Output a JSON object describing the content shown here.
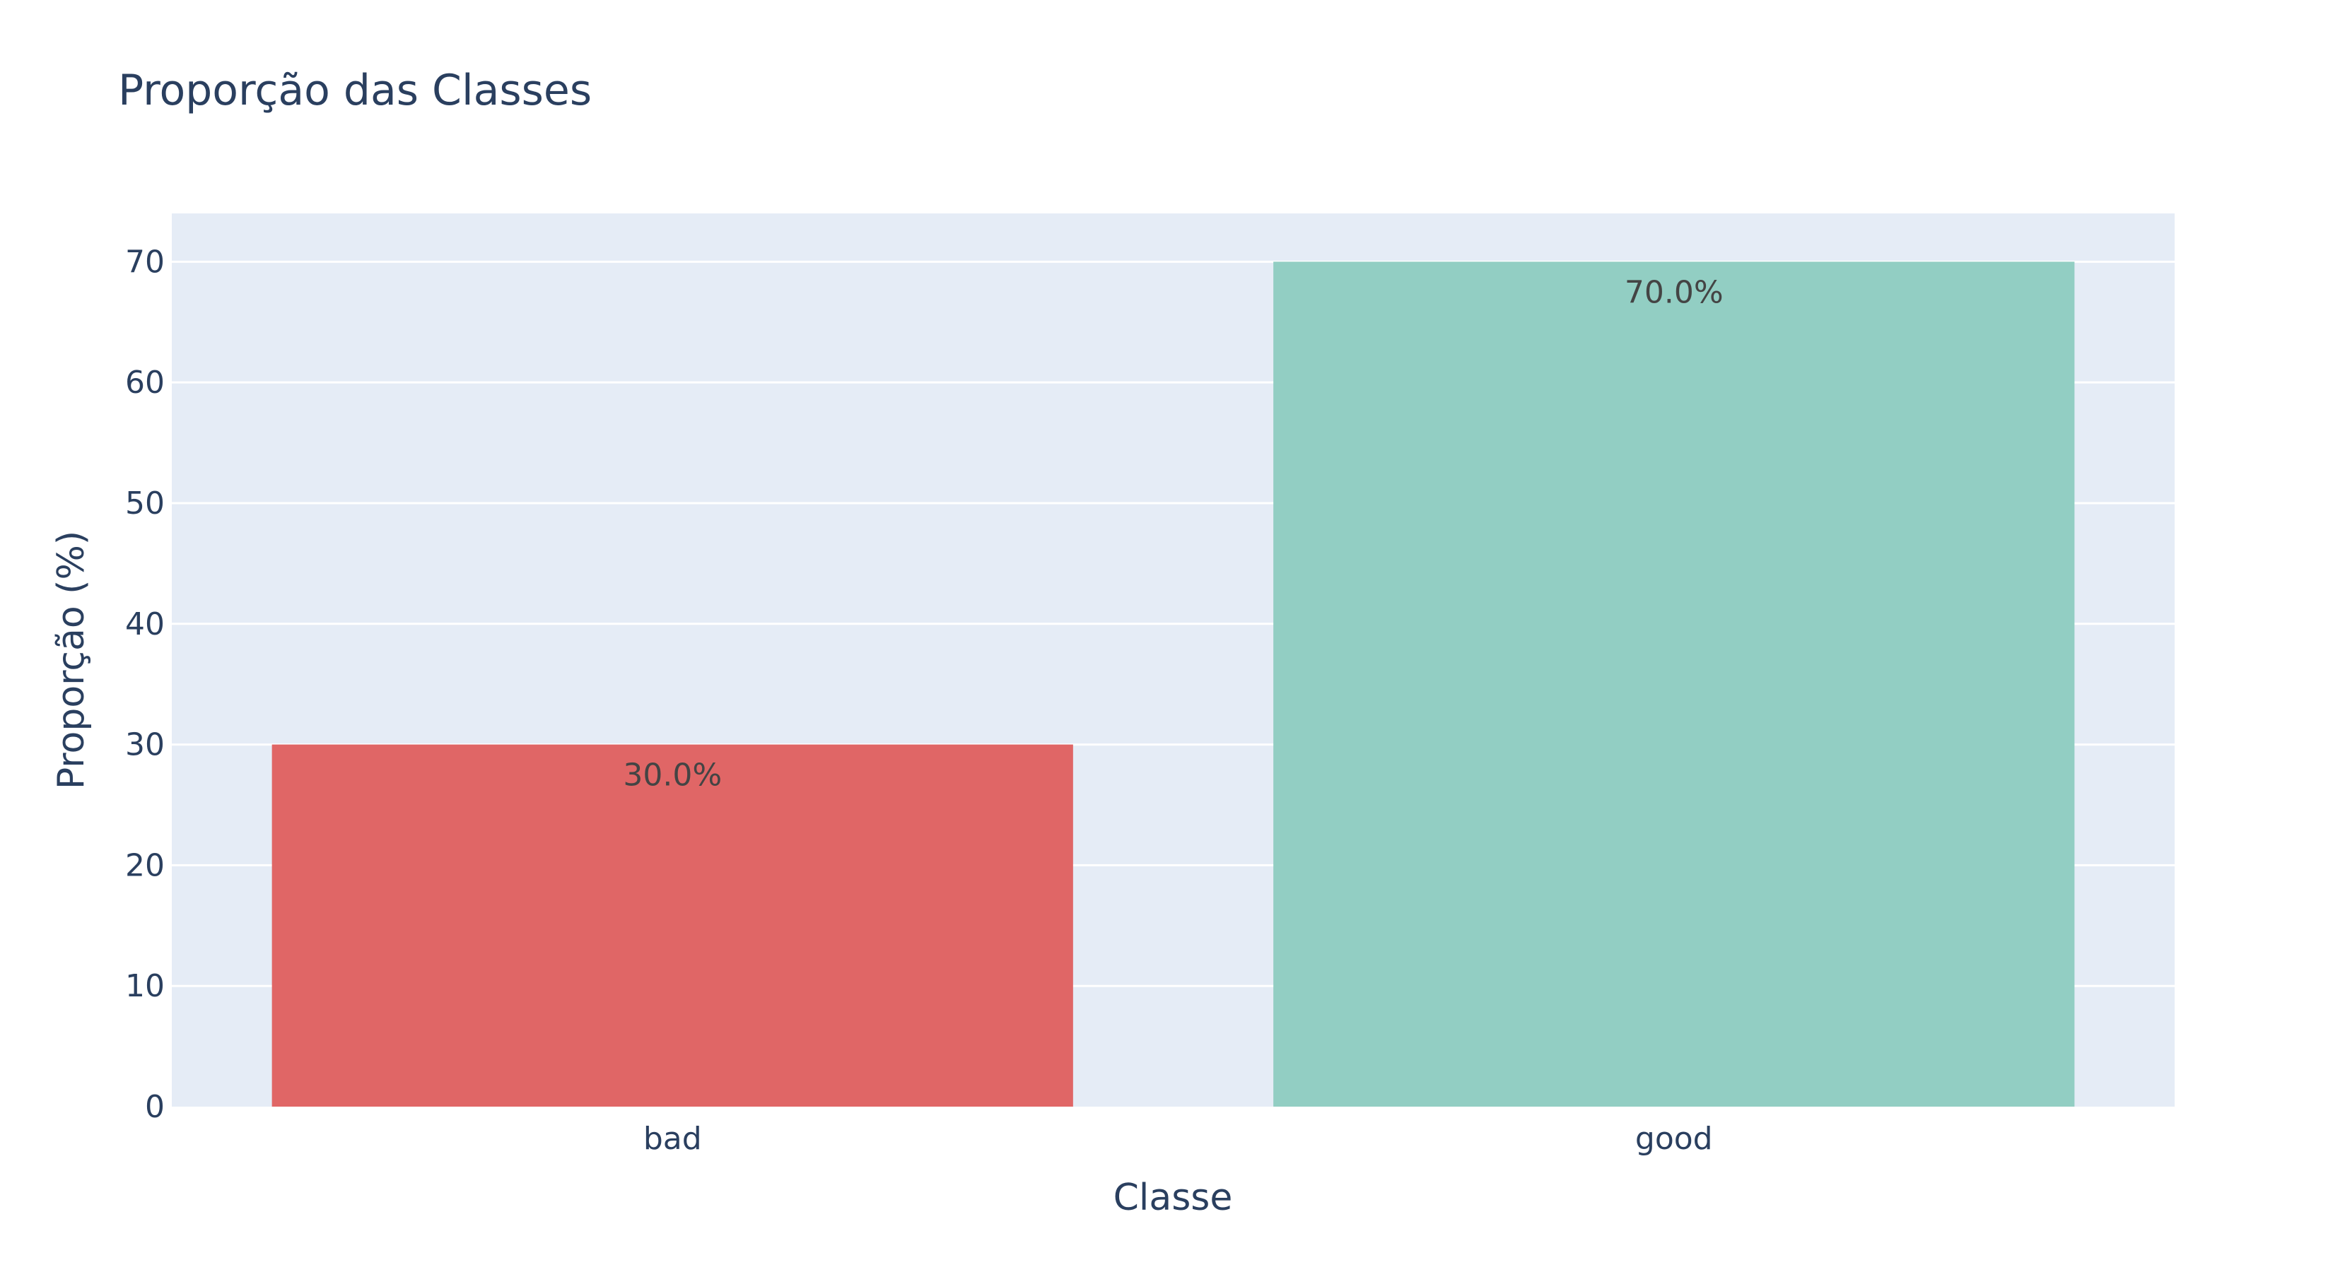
{
  "chart_data": {
    "type": "bar",
    "title": "Proporção das Classes",
    "xlabel": "Classe",
    "ylabel": "Proporção (%)",
    "categories": [
      "bad",
      "good"
    ],
    "values": [
      30.0,
      70.0
    ],
    "value_labels": [
      "30.0%",
      "70.0%"
    ],
    "bar_colors": [
      "#e06666",
      "#92cec3"
    ],
    "ylim": [
      0,
      74
    ],
    "yticks": [
      0,
      10,
      20,
      30,
      40,
      50,
      60,
      70
    ],
    "grid": true,
    "legend": "none",
    "colors": {
      "plot_bg": "#e5ecf6",
      "grid": "#ffffff",
      "text": "#2a3f5f",
      "bar_label_text": "#444444"
    }
  }
}
